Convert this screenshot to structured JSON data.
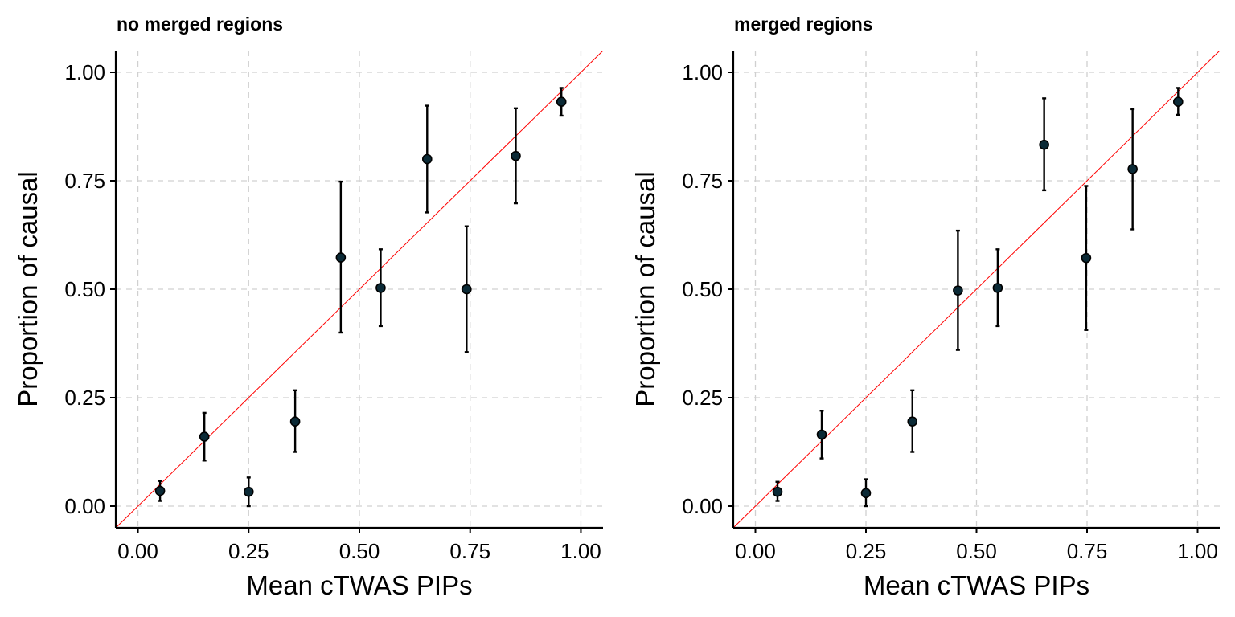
{
  "colors": {
    "reference_line": "#ff0000",
    "point_fill": "#0b2a36",
    "grid": "#d0d0d0"
  },
  "chart_data": [
    {
      "type": "scatter",
      "title": "no merged regions",
      "xlabel": "Mean cTWAS PIPs",
      "ylabel": "Proportion of causal",
      "xlim": [
        -0.05,
        1.05
      ],
      "ylim": [
        -0.05,
        1.05
      ],
      "xticks": [
        0.0,
        0.25,
        0.5,
        0.75,
        1.0
      ],
      "xtick_labels": [
        "0.00",
        "0.25",
        "0.50",
        "0.75",
        "1.00"
      ],
      "yticks": [
        0.0,
        0.25,
        0.5,
        0.75,
        1.0
      ],
      "ytick_labels": [
        "0.00",
        "0.25",
        "0.50",
        "0.75",
        "1.00"
      ],
      "grid": true,
      "reference_line": "y = x",
      "points": [
        {
          "x": 0.05,
          "y": 0.035,
          "ymin": 0.012,
          "ymax": 0.058
        },
        {
          "x": 0.15,
          "y": 0.16,
          "ymin": 0.105,
          "ymax": 0.215
        },
        {
          "x": 0.25,
          "y": 0.033,
          "ymin": 0.0,
          "ymax": 0.066
        },
        {
          "x": 0.355,
          "y": 0.195,
          "ymin": 0.125,
          "ymax": 0.267
        },
        {
          "x": 0.458,
          "y": 0.573,
          "ymin": 0.4,
          "ymax": 0.748
        },
        {
          "x": 0.548,
          "y": 0.503,
          "ymin": 0.415,
          "ymax": 0.592
        },
        {
          "x": 0.653,
          "y": 0.8,
          "ymin": 0.677,
          "ymax": 0.923
        },
        {
          "x": 0.742,
          "y": 0.5,
          "ymin": 0.355,
          "ymax": 0.645
        },
        {
          "x": 0.853,
          "y": 0.807,
          "ymin": 0.698,
          "ymax": 0.917
        },
        {
          "x": 0.956,
          "y": 0.932,
          "ymin": 0.9,
          "ymax": 0.964
        }
      ]
    },
    {
      "type": "scatter",
      "title": "merged regions",
      "xlabel": "Mean cTWAS PIPs",
      "ylabel": "Proportion of causal",
      "xlim": [
        -0.05,
        1.05
      ],
      "ylim": [
        -0.05,
        1.05
      ],
      "xticks": [
        0.0,
        0.25,
        0.5,
        0.75,
        1.0
      ],
      "xtick_labels": [
        "0.00",
        "0.25",
        "0.50",
        "0.75",
        "1.00"
      ],
      "yticks": [
        0.0,
        0.25,
        0.5,
        0.75,
        1.0
      ],
      "ytick_labels": [
        "0.00",
        "0.25",
        "0.50",
        "0.75",
        "1.00"
      ],
      "grid": true,
      "reference_line": "y = x",
      "points": [
        {
          "x": 0.05,
          "y": 0.033,
          "ymin": 0.012,
          "ymax": 0.056
        },
        {
          "x": 0.15,
          "y": 0.165,
          "ymin": 0.11,
          "ymax": 0.22
        },
        {
          "x": 0.25,
          "y": 0.03,
          "ymin": 0.0,
          "ymax": 0.062
        },
        {
          "x": 0.355,
          "y": 0.195,
          "ymin": 0.125,
          "ymax": 0.267
        },
        {
          "x": 0.458,
          "y": 0.497,
          "ymin": 0.36,
          "ymax": 0.635
        },
        {
          "x": 0.548,
          "y": 0.503,
          "ymin": 0.415,
          "ymax": 0.592
        },
        {
          "x": 0.653,
          "y": 0.833,
          "ymin": 0.728,
          "ymax": 0.94
        },
        {
          "x": 0.748,
          "y": 0.572,
          "ymin": 0.406,
          "ymax": 0.738
        },
        {
          "x": 0.853,
          "y": 0.777,
          "ymin": 0.638,
          "ymax": 0.915
        },
        {
          "x": 0.956,
          "y": 0.932,
          "ymin": 0.902,
          "ymax": 0.964
        }
      ]
    }
  ]
}
